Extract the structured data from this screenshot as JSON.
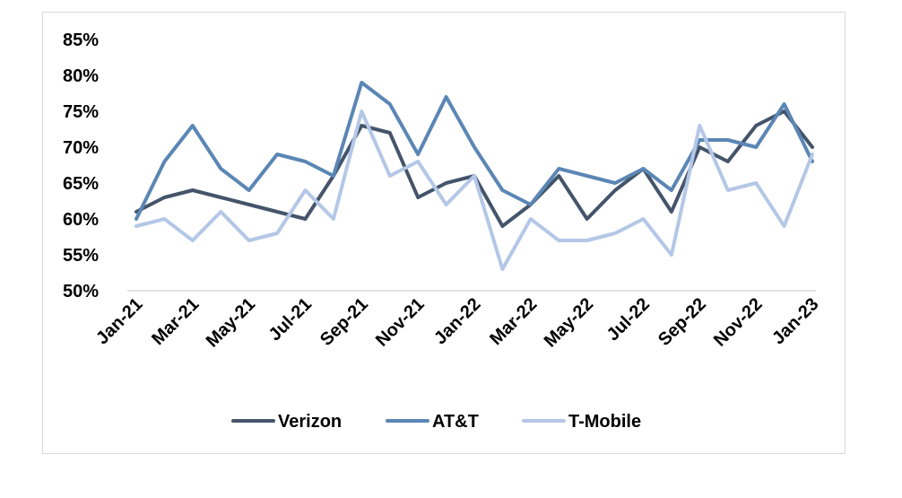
{
  "chart_data": {
    "type": "line",
    "title": "",
    "xlabel": "",
    "ylabel": "",
    "x": [
      "Jan-21",
      "Feb-21",
      "Mar-21",
      "Apr-21",
      "May-21",
      "Jun-21",
      "Jul-21",
      "Aug-21",
      "Sep-21",
      "Oct-21",
      "Nov-21",
      "Dec-21",
      "Jan-22",
      "Feb-22",
      "Mar-22",
      "Apr-22",
      "May-22",
      "Jun-22",
      "Jul-22",
      "Aug-22",
      "Sep-22",
      "Oct-22",
      "Nov-22",
      "Dec-22",
      "Jan-23"
    ],
    "x_tick_labels": [
      "Jan-21",
      "Mar-21",
      "May-21",
      "Jul-21",
      "Sep-21",
      "Nov-21",
      "Jan-22",
      "Mar-22",
      "May-22",
      "Jul-22",
      "Sep-22",
      "Nov-22",
      "Jan-23"
    ],
    "y_tick_labels": [
      "50%",
      "55%",
      "60%",
      "65%",
      "70%",
      "75%",
      "80%",
      "85%"
    ],
    "ylim": [
      50,
      85
    ],
    "y_unit": "%",
    "grid": false,
    "legend_position": "bottom",
    "series": [
      {
        "name": "Verizon",
        "color": "#44546a",
        "values": [
          61,
          63,
          64,
          63,
          62,
          61,
          60,
          66,
          73,
          72,
          63,
          65,
          66,
          59,
          62,
          66,
          60,
          64,
          67,
          61,
          70,
          68,
          73,
          75,
          70
        ]
      },
      {
        "name": "AT&T",
        "color": "#5b86b5",
        "values": [
          60,
          68,
          73,
          67,
          64,
          69,
          68,
          66,
          79,
          76,
          69,
          77,
          70,
          64,
          62,
          67,
          66,
          65,
          67,
          64,
          71,
          71,
          70,
          76,
          68
        ]
      },
      {
        "name": "T-Mobile",
        "color": "#b4c7e7",
        "values": [
          59,
          60,
          57,
          61,
          57,
          58,
          64,
          60,
          75,
          66,
          68,
          62,
          66,
          53,
          60,
          57,
          57,
          58,
          60,
          55,
          73,
          64,
          65,
          59,
          69
        ]
      }
    ]
  }
}
